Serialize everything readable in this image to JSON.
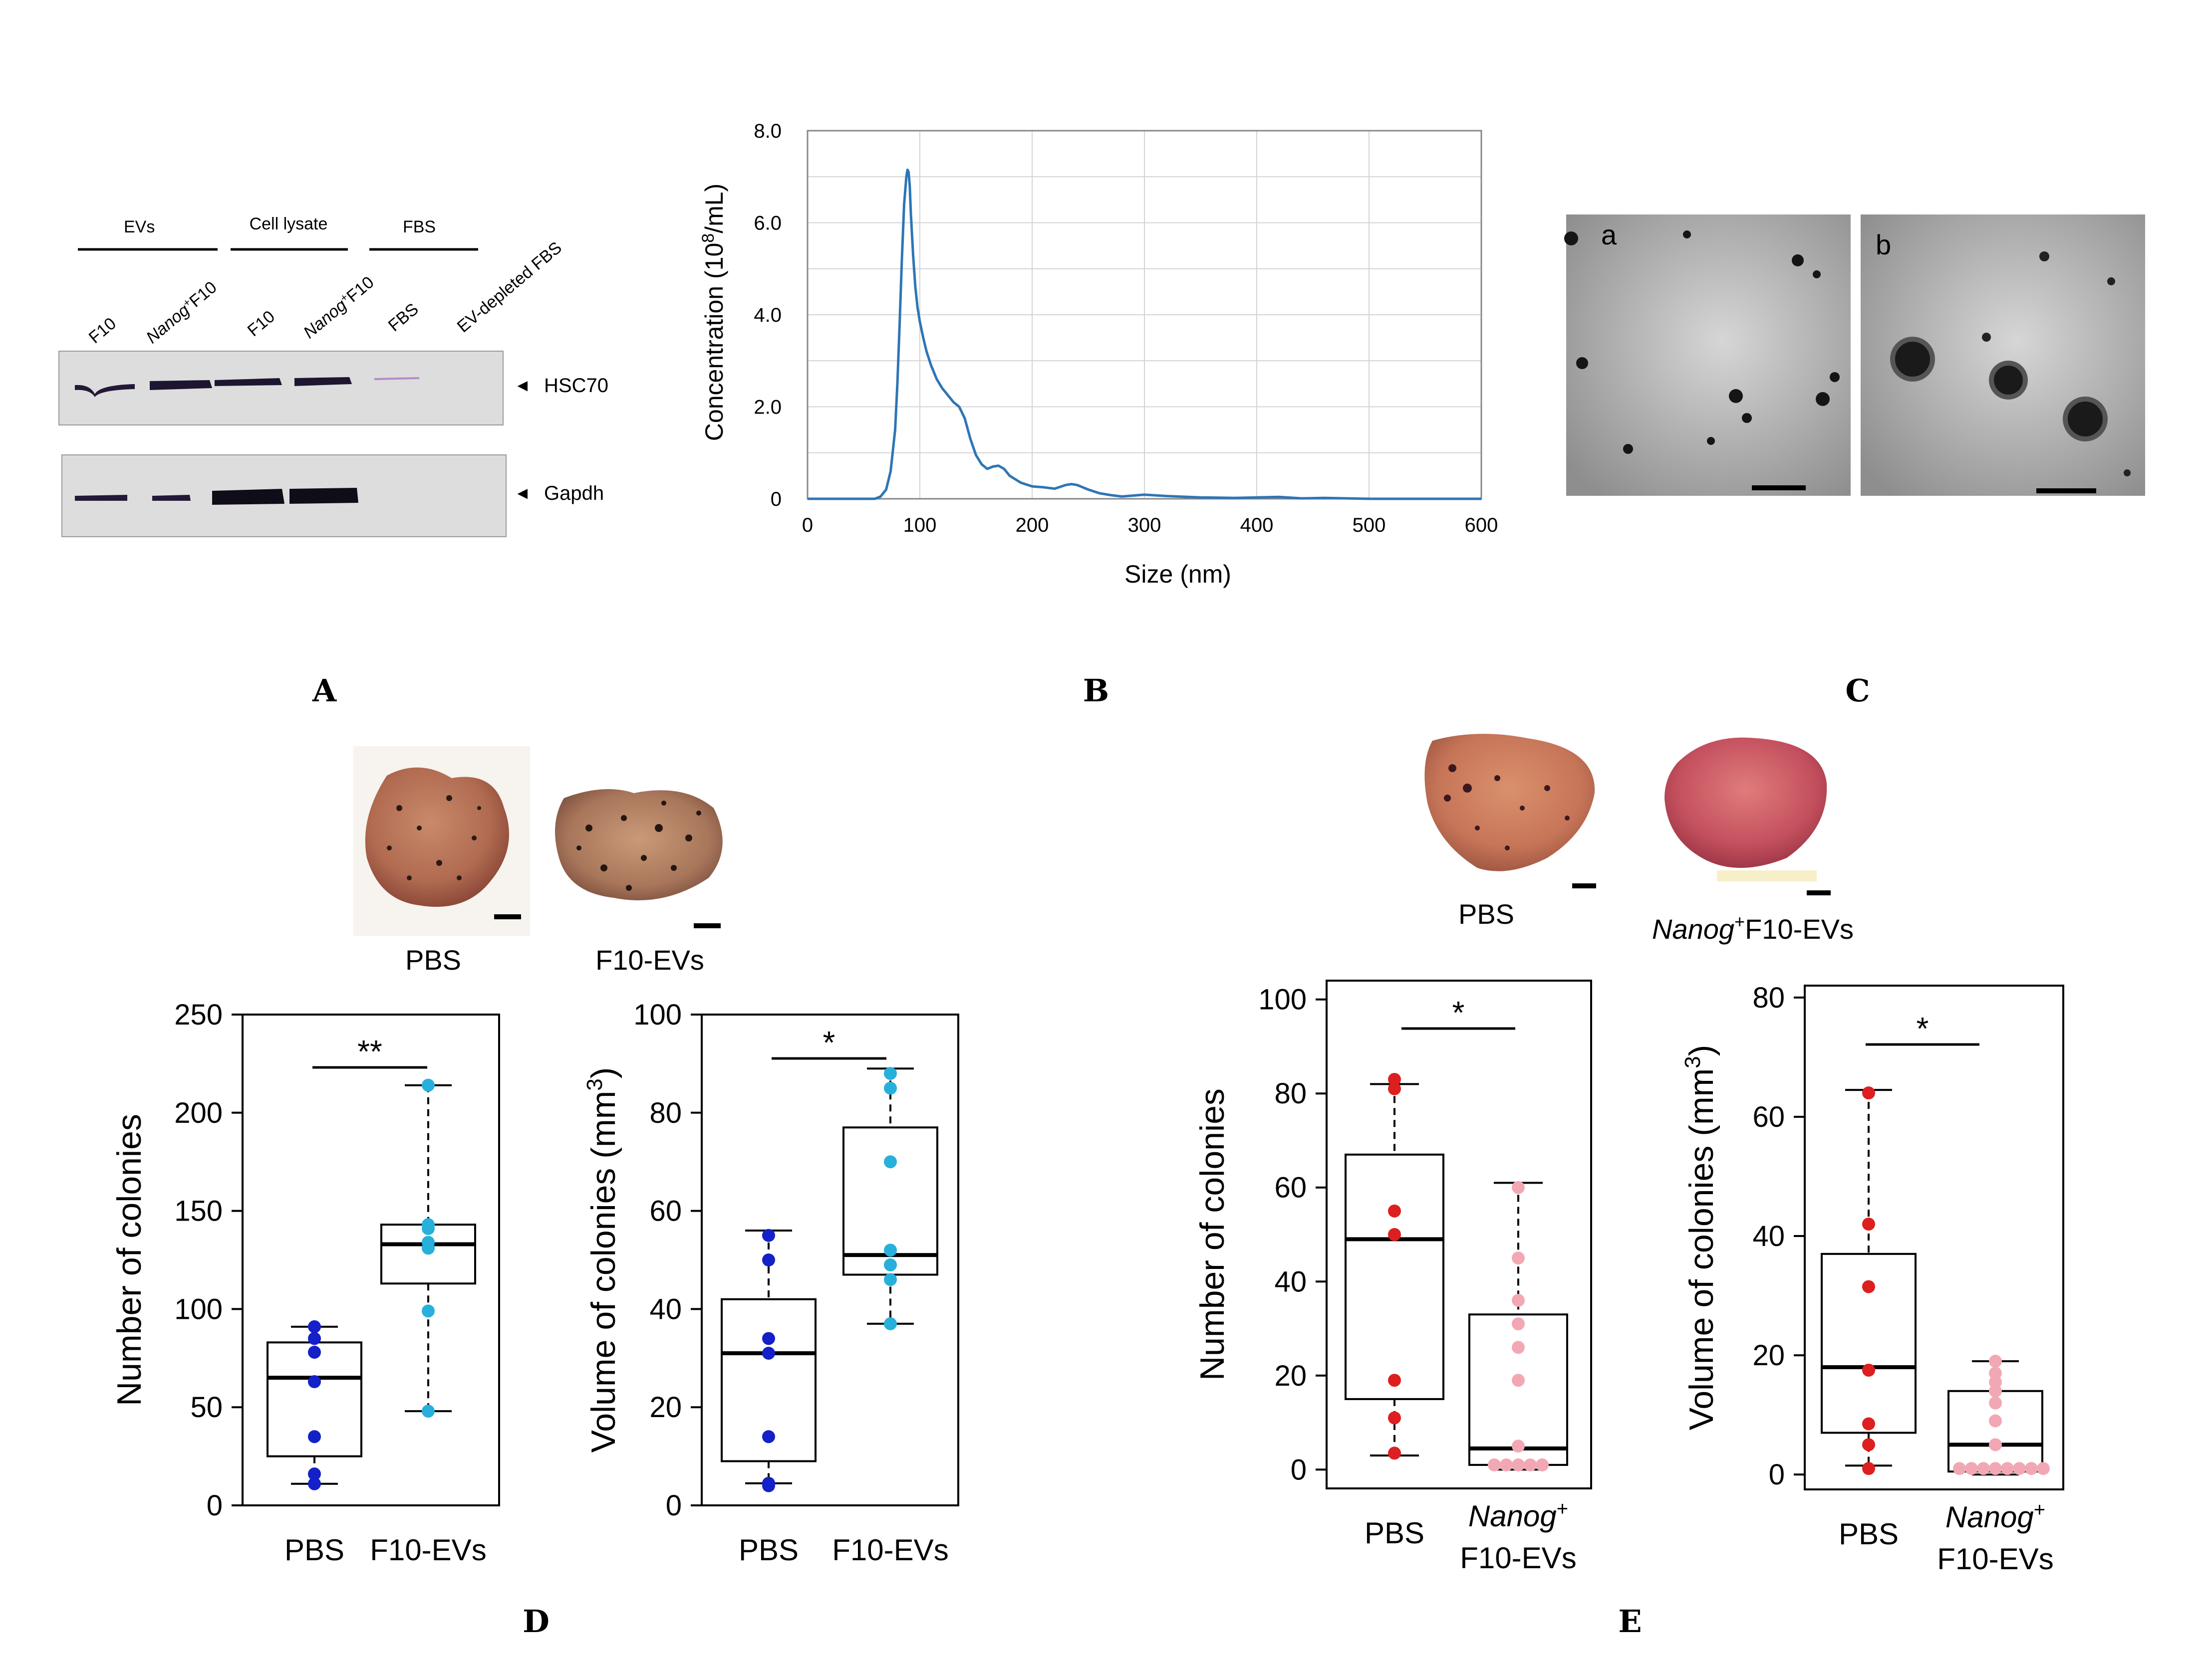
{
  "panels": {
    "A": {
      "label": "A",
      "groups": [
        "EVs",
        "Cell lysate",
        "FBS"
      ],
      "lanes": [
        {
          "prefix": "",
          "name": "F10"
        },
        {
          "prefix": "Nanog",
          "sup": "+",
          "name": "F10"
        },
        {
          "prefix": "",
          "name": "F10"
        },
        {
          "prefix": "Nanog",
          "sup": "+",
          "name": "F10"
        },
        {
          "prefix": "",
          "name": "FBS"
        },
        {
          "prefix": "",
          "name": "EV-depleted FBS"
        }
      ],
      "markers": [
        "HSC70",
        "Gapdh"
      ],
      "arrow_glyph": "◄"
    },
    "B": {
      "label": "B"
    },
    "C": {
      "label": "C",
      "sub_labels": [
        "a",
        "b"
      ]
    },
    "D": {
      "label": "D",
      "photo_labels": [
        "PBS",
        "F10-EVs"
      ]
    },
    "E": {
      "label": "E",
      "photo_labels_prefix": "Nanog",
      "photo_labels_sup": "+",
      "photo_labels": [
        "PBS",
        "F10-EVs"
      ]
    }
  },
  "colors": {
    "line": "#2E75B6",
    "pbs_D": "#1420C8",
    "f10_D": "#27B0DC",
    "pbs_E": "#DD1F1F",
    "nanog_E": "#F2A8B4"
  },
  "chart_data": [
    {
      "id": "B",
      "type": "line",
      "title": "",
      "xlabel": "Size (nm)",
      "ylabel": "Concentration (10^8/mL)",
      "ylabel_parts": {
        "main": "Concentration (10",
        "sup": "8",
        "tail": "/mL)"
      },
      "xlim": [
        0,
        600
      ],
      "ylim": [
        0,
        8
      ],
      "xticks": [
        0,
        100,
        200,
        300,
        400,
        500,
        600
      ],
      "yticks": [
        "0",
        "2.0",
        "4.0",
        "6.0",
        "8.0"
      ],
      "ytick_values": [
        0,
        2,
        4,
        6,
        8
      ],
      "grid": true,
      "x": [
        0,
        60,
        65,
        70,
        74,
        78,
        80,
        82,
        84,
        86,
        88,
        89,
        90,
        91,
        92,
        94,
        96,
        98,
        100,
        103,
        106,
        110,
        115,
        120,
        125,
        130,
        135,
        140,
        145,
        150,
        155,
        160,
        165,
        170,
        175,
        180,
        190,
        200,
        210,
        220,
        230,
        235,
        240,
        250,
        260,
        270,
        280,
        300,
        320,
        350,
        380,
        400,
        420,
        440,
        460,
        480,
        500,
        600
      ],
      "y": [
        0,
        0,
        0.05,
        0.2,
        0.6,
        1.5,
        2.5,
        3.8,
        5.2,
        6.4,
        7.0,
        7.15,
        7.1,
        6.8,
        6.2,
        5.3,
        4.6,
        4.15,
        3.85,
        3.5,
        3.2,
        2.9,
        2.6,
        2.4,
        2.25,
        2.1,
        2.0,
        1.75,
        1.3,
        0.95,
        0.75,
        0.65,
        0.7,
        0.72,
        0.65,
        0.5,
        0.35,
        0.27,
        0.25,
        0.22,
        0.3,
        0.32,
        0.3,
        0.2,
        0.12,
        0.08,
        0.05,
        0.09,
        0.06,
        0.03,
        0.02,
        0.03,
        0.04,
        0.01,
        0.02,
        0.01,
        0,
        0
      ]
    },
    {
      "id": "D1",
      "type": "box",
      "ylabel": "Number of colonies",
      "ylim": [
        0,
        250
      ],
      "yticks": [
        0,
        50,
        100,
        150,
        200,
        250
      ],
      "significance": "**",
      "groups": [
        {
          "name": "PBS",
          "name_lines": [
            "PBS"
          ],
          "color_key": "pbs_D",
          "q1": 25,
          "median": 65,
          "q3": 83,
          "wlo": 11,
          "whi": 91,
          "points": [
            11,
            16,
            35,
            63,
            78,
            85,
            91
          ]
        },
        {
          "name": "F10-EVs",
          "name_lines": [
            "F10-EVs"
          ],
          "color_key": "f10_D",
          "q1": 113,
          "median": 133,
          "q3": 143,
          "wlo": 48,
          "whi": 214,
          "points": [
            48,
            99,
            131,
            134,
            141,
            143,
            214
          ]
        }
      ]
    },
    {
      "id": "D2",
      "type": "box",
      "ylabel": "Volume of colonies (mm^3)",
      "ylabel_parts": {
        "main": "Volume of colonies (mm",
        "sup": "3",
        "tail": ")"
      },
      "ylim": [
        0,
        100
      ],
      "yticks": [
        0,
        20,
        40,
        60,
        80,
        100
      ],
      "significance": "*",
      "groups": [
        {
          "name": "PBS",
          "name_lines": [
            "PBS"
          ],
          "color_key": "pbs_D",
          "q1": 9,
          "median": 31,
          "q3": 42,
          "wlo": 4.5,
          "whi": 56,
          "points": [
            4,
            4.5,
            14,
            31,
            34,
            50,
            55
          ]
        },
        {
          "name": "F10-EVs",
          "name_lines": [
            "F10-EVs"
          ],
          "color_key": "f10_D",
          "q1": 47,
          "median": 51,
          "q3": 77,
          "wlo": 37,
          "whi": 89,
          "points": [
            37,
            46,
            49,
            52,
            70,
            85,
            88
          ]
        }
      ]
    },
    {
      "id": "E1",
      "type": "box",
      "ylabel": "Number of colonies",
      "ylim": [
        -4,
        104
      ],
      "yticks": [
        0,
        20,
        40,
        60,
        80,
        100
      ],
      "significance": "*",
      "groups": [
        {
          "name": "PBS",
          "name_lines": [
            "PBS"
          ],
          "color_key": "pbs_E",
          "q1": 15,
          "median": 49,
          "q3": 67,
          "wlo": 3,
          "whi": 82,
          "points": [
            3.5,
            11,
            19,
            50,
            55,
            81,
            83
          ]
        },
        {
          "name": "Nanog+ F10-EVs",
          "name_lines": [
            "Nanog",
            "F10-EVs"
          ],
          "name_sup": "+",
          "color_key": "nanog_E",
          "q1": 1,
          "median": 4.5,
          "q3": 33,
          "wlo": 0,
          "whi": 61,
          "points": [
            1,
            1,
            1,
            1,
            1,
            5,
            19,
            26,
            31,
            36,
            45,
            60
          ]
        }
      ]
    },
    {
      "id": "E2",
      "type": "box",
      "ylabel": "Volume of colonies (mm^3)",
      "ylabel_parts": {
        "main": "Volume of colonies (mm",
        "sup": "3",
        "tail": ")"
      },
      "ylim": [
        -2.5,
        82
      ],
      "yticks": [
        0,
        20,
        40,
        60,
        80
      ],
      "significance": "*",
      "groups": [
        {
          "name": "PBS",
          "name_lines": [
            "PBS"
          ],
          "color_key": "pbs_E",
          "q1": 7,
          "median": 18,
          "q3": 37,
          "wlo": 1.5,
          "whi": 64.5,
          "points": [
            1,
            5,
            8.5,
            17.5,
            31.5,
            42,
            64
          ]
        },
        {
          "name": "Nanog+ F10-EVs",
          "name_lines": [
            "Nanog",
            "F10-EVs"
          ],
          "name_sup": "+",
          "color_key": "nanog_E",
          "q1": 0.5,
          "median": 5,
          "q3": 14,
          "wlo": 0,
          "whi": 19,
          "points": [
            1,
            1,
            1,
            1,
            1,
            1,
            1,
            1,
            5,
            9,
            12,
            14,
            15.5,
            17,
            19
          ]
        }
      ]
    }
  ]
}
